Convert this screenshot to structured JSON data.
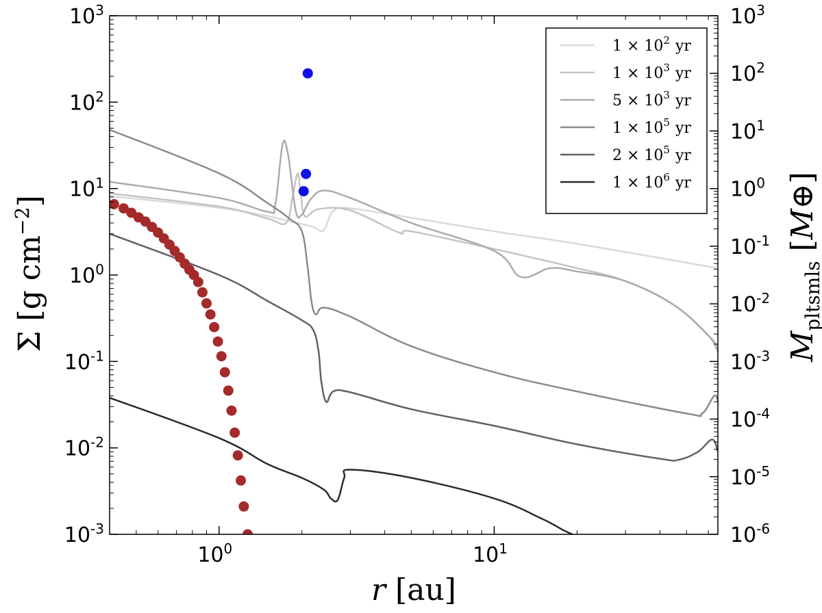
{
  "chart_data": {
    "type": "line",
    "title": "",
    "xscale": "log",
    "xlim": [
      0.4,
      65
    ],
    "xlabel": {
      "var": "r",
      "unit": "au"
    },
    "xticks": [
      {
        "value": 1,
        "base": "10",
        "exp": "0"
      },
      {
        "value": 10,
        "base": "10",
        "exp": "1"
      }
    ],
    "left_axis": {
      "scale": "log",
      "ylim": [
        0.001,
        1000
      ],
      "label": {
        "var": "Σ",
        "unit_text": "g cm",
        "unit_exp": "−2"
      },
      "ticks": [
        {
          "value": 1000,
          "base": "10",
          "exp": "3"
        },
        {
          "value": 100,
          "base": "10",
          "exp": "2"
        },
        {
          "value": 10,
          "base": "10",
          "exp": "1"
        },
        {
          "value": 1,
          "base": "10",
          "exp": "0"
        },
        {
          "value": 0.1,
          "base": "10",
          "exp": "-1"
        },
        {
          "value": 0.01,
          "base": "10",
          "exp": "-2"
        },
        {
          "value": 0.001,
          "base": "10",
          "exp": "-3"
        }
      ]
    },
    "right_axis": {
      "scale": "log",
      "ylim": [
        1e-06,
        1000
      ],
      "label": {
        "var": "M",
        "sub": "pltsmls",
        "unit": "M⊕"
      },
      "ticks": [
        {
          "value": 1000,
          "base": "10",
          "exp": "3"
        },
        {
          "value": 100,
          "base": "10",
          "exp": "2"
        },
        {
          "value": 10,
          "base": "10",
          "exp": "1"
        },
        {
          "value": 1,
          "base": "10",
          "exp": "0"
        },
        {
          "value": 0.1,
          "base": "10",
          "exp": "-1"
        },
        {
          "value": 0.01,
          "base": "10",
          "exp": "-2"
        },
        {
          "value": 0.001,
          "base": "10",
          "exp": "-3"
        },
        {
          "value": 0.0001,
          "base": "10",
          "exp": "-4"
        },
        {
          "value": 1e-05,
          "base": "10",
          "exp": "-5"
        },
        {
          "value": 1e-06,
          "base": "10",
          "exp": "-6"
        }
      ]
    },
    "legend_position": "top-right",
    "series": [
      {
        "name": "1 × 10^2 yr",
        "mant": "1 × 10",
        "exp": "2",
        "unit": "yr",
        "color": "#d9d9d9",
        "points": [
          [
            0.4,
            8.2
          ],
          [
            1.0,
            6.0
          ],
          [
            1.5,
            4.8
          ],
          [
            1.8,
            4.2
          ],
          [
            2.0,
            3.9
          ],
          [
            2.2,
            3.6
          ],
          [
            2.4,
            3.3
          ],
          [
            2.6,
            5.5
          ],
          [
            3.0,
            5.9
          ],
          [
            5.0,
            4.6
          ],
          [
            10,
            3.2
          ],
          [
            20,
            2.3
          ],
          [
            65,
            1.2
          ]
        ]
      },
      {
        "name": "1 × 10^3 yr",
        "mant": "1 × 10",
        "exp": "3",
        "unit": "yr",
        "color": "#c4c4c4",
        "points": [
          [
            0.4,
            8.8
          ],
          [
            1.0,
            6.2
          ],
          [
            1.5,
            4.5
          ],
          [
            1.75,
            4.0
          ],
          [
            1.85,
            8.0
          ],
          [
            1.93,
            15.0
          ],
          [
            1.98,
            9.0
          ],
          [
            2.05,
            4.8
          ],
          [
            2.3,
            5.8
          ],
          [
            3.0,
            5.6
          ],
          [
            4.5,
            3.1
          ],
          [
            5.0,
            3.2
          ],
          [
            10,
            2.0
          ],
          [
            20,
            1.2
          ],
          [
            30,
            0.85
          ],
          [
            45,
            0.45
          ],
          [
            60,
            0.2
          ],
          [
            65,
            0.15
          ]
        ]
      },
      {
        "name": "5 × 10^3 yr",
        "mant": "5 × 10",
        "exp": "3",
        "unit": "yr",
        "color": "#ababab",
        "points": [
          [
            0.4,
            12
          ],
          [
            1.0,
            7.8
          ],
          [
            1.5,
            5.4
          ],
          [
            1.6,
            6.5
          ],
          [
            1.7,
            32
          ],
          [
            1.78,
            25
          ],
          [
            1.9,
            5.5
          ],
          [
            2.0,
            5.0
          ],
          [
            2.15,
            7.5
          ],
          [
            2.4,
            9.5
          ],
          [
            3.0,
            7.8
          ],
          [
            5.0,
            4.0
          ],
          [
            10,
            1.9
          ],
          [
            12.5,
            0.95
          ],
          [
            16,
            1.2
          ],
          [
            20,
            1.1
          ],
          [
            30,
            0.85
          ],
          [
            45,
            0.45
          ],
          [
            60,
            0.2
          ],
          [
            65,
            0.13
          ]
        ]
      },
      {
        "name": "1 × 10^5 yr",
        "mant": "1 × 10",
        "exp": "5",
        "unit": "yr",
        "color": "#8a8a8a",
        "points": [
          [
            0.4,
            48
          ],
          [
            1.0,
            15
          ],
          [
            1.5,
            6.8
          ],
          [
            1.8,
            4.5
          ],
          [
            2.0,
            3.2
          ],
          [
            2.1,
            1.2
          ],
          [
            2.17,
            0.48
          ],
          [
            2.25,
            0.35
          ],
          [
            2.4,
            0.42
          ],
          [
            3.0,
            0.33
          ],
          [
            5.0,
            0.15
          ],
          [
            10,
            0.075
          ],
          [
            20,
            0.045
          ],
          [
            50,
            0.025
          ],
          [
            57,
            0.025
          ],
          [
            63,
            0.04
          ],
          [
            65,
            0.035
          ]
        ]
      },
      {
        "name": "2 × 10^5 yr",
        "mant": "2 × 10",
        "exp": "5",
        "unit": "yr",
        "color": "#616161",
        "points": [
          [
            0.4,
            3.0
          ],
          [
            1.0,
            1.0
          ],
          [
            1.5,
            0.5
          ],
          [
            2.0,
            0.3
          ],
          [
            2.2,
            0.23
          ],
          [
            2.3,
            0.13
          ],
          [
            2.35,
            0.06
          ],
          [
            2.45,
            0.034
          ],
          [
            2.6,
            0.045
          ],
          [
            3.0,
            0.044
          ],
          [
            5.0,
            0.028
          ],
          [
            10,
            0.018
          ],
          [
            20,
            0.011
          ],
          [
            40,
            0.0075
          ],
          [
            47,
            0.0073
          ],
          [
            55,
            0.009
          ],
          [
            62,
            0.0125
          ],
          [
            65,
            0.009
          ]
        ]
      },
      {
        "name": "1 × 10^6 yr",
        "mant": "1 × 10",
        "exp": "6",
        "unit": "yr",
        "color": "#2b2b2b",
        "points": [
          [
            0.4,
            0.038
          ],
          [
            1.0,
            0.013
          ],
          [
            1.5,
            0.0065
          ],
          [
            2.0,
            0.0045
          ],
          [
            2.4,
            0.0033
          ],
          [
            2.55,
            0.0026
          ],
          [
            2.7,
            0.0025
          ],
          [
            2.85,
            0.0045
          ],
          [
            3.0,
            0.0056
          ],
          [
            5.0,
            0.0045
          ],
          [
            10,
            0.0026
          ],
          [
            15,
            0.0015
          ],
          [
            18,
            0.0011
          ],
          [
            20,
            0.00095
          ]
        ]
      }
    ],
    "scatter": [
      {
        "name": "planetesimal-mass-dots",
        "color": "#1010e8",
        "axis": "right",
        "points": [
          [
            2.1,
            100
          ],
          [
            2.07,
            1.8
          ],
          [
            2.03,
            0.9
          ]
        ]
      },
      {
        "name": "red-dots",
        "color": "#a52a2a",
        "axis": "left",
        "points": [
          [
            0.415,
            6.6
          ],
          [
            0.45,
            5.9
          ],
          [
            0.48,
            5.25
          ],
          [
            0.51,
            4.65
          ],
          [
            0.54,
            4.15
          ],
          [
            0.57,
            3.6
          ],
          [
            0.6,
            3.1
          ],
          [
            0.63,
            2.65
          ],
          [
            0.66,
            2.25
          ],
          [
            0.69,
            1.9
          ],
          [
            0.72,
            1.6
          ],
          [
            0.75,
            1.35
          ],
          [
            0.78,
            1.15
          ],
          [
            0.81,
            1.0
          ],
          [
            0.84,
            0.83
          ],
          [
            0.87,
            0.63
          ],
          [
            0.9,
            0.47
          ],
          [
            0.93,
            0.35
          ],
          [
            0.96,
            0.25
          ],
          [
            0.99,
            0.17
          ],
          [
            1.02,
            0.115
          ],
          [
            1.05,
            0.075
          ],
          [
            1.08,
            0.046
          ],
          [
            1.11,
            0.027
          ],
          [
            1.14,
            0.015
          ],
          [
            1.17,
            0.0082
          ],
          [
            1.2,
            0.0042
          ],
          [
            1.23,
            0.0021
          ],
          [
            1.27,
            0.001
          ]
        ]
      }
    ]
  }
}
